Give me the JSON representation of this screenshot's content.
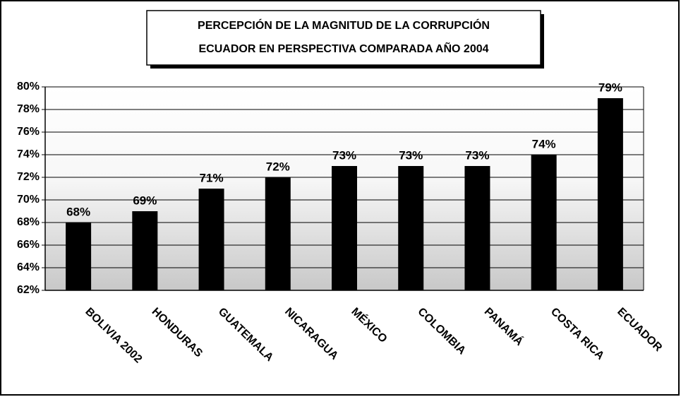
{
  "chart_data": {
    "type": "bar",
    "title": "PERCEPCIÓN DE LA MAGNITUD DE LA CORRUPCIÓN",
    "subtitle": "ECUADOR EN PERSPECTIVA COMPARADA AÑO 2004",
    "categories": [
      "BOLIVIA 2002",
      "HONDURAS",
      "GUATEMALA",
      "NICARAGUA",
      "MÉXICO",
      "COLOMBIA",
      "PANAMÁ",
      "COSTA RICA",
      "ECUADOR"
    ],
    "values": [
      68,
      69,
      71,
      72,
      73,
      73,
      73,
      74,
      79
    ],
    "value_labels": [
      "68%",
      "69%",
      "71%",
      "72%",
      "73%",
      "73%",
      "73%",
      "74%",
      "79%"
    ],
    "color": "#000000",
    "ylim": [
      62,
      80
    ],
    "yticks": [
      {
        "value": 62,
        "label": "62%"
      },
      {
        "value": 64,
        "label": "64%"
      },
      {
        "value": 66,
        "label": "66%"
      },
      {
        "value": 68,
        "label": "68%"
      },
      {
        "value": 70,
        "label": "70%"
      },
      {
        "value": 72,
        "label": "72%"
      },
      {
        "value": 74,
        "label": "74%"
      },
      {
        "value": 76,
        "label": "76%"
      },
      {
        "value": 78,
        "label": "78%"
      },
      {
        "value": 80,
        "label": "80%"
      }
    ],
    "grid": true
  }
}
